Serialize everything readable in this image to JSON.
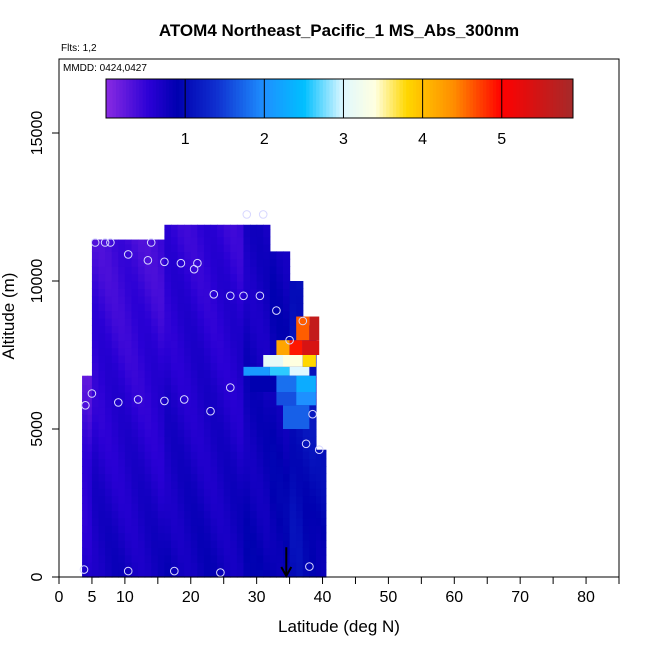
{
  "chart_data": {
    "type": "heatmap",
    "title": "ATOM4 Northeast_Pacific_1 MS_Abs_300nm",
    "flights_label": "Flts: 1,2",
    "mmdd_label": "MMDD: 0424,0427",
    "xlabel": "Latitude (deg N)",
    "ylabel": "Altitude (m)",
    "xlim": [
      0,
      85
    ],
    "ylim": [
      0,
      17500
    ],
    "x_ticks": [
      0,
      5,
      10,
      20,
      30,
      40,
      50,
      60,
      70,
      80
    ],
    "y_ticks": [
      0,
      5000,
      10000,
      15000
    ],
    "grid": false,
    "colorbar": {
      "range": [
        0,
        5.9
      ],
      "ticks": [
        1,
        2,
        3,
        4,
        5
      ],
      "placement": "top-inside"
    },
    "colormap": [
      [
        0.0,
        "#8a2be2"
      ],
      [
        0.55,
        "#2a00d5"
      ],
      [
        0.9,
        "#0000b0"
      ],
      [
        1.4,
        "#1030d0"
      ],
      [
        2.0,
        "#1e90ff"
      ],
      [
        2.5,
        "#00bfff"
      ],
      [
        3.0,
        "#e0f8ff"
      ],
      [
        3.4,
        "#ffffe0"
      ],
      [
        3.8,
        "#ffd700"
      ],
      [
        4.4,
        "#ff8c00"
      ],
      [
        5.0,
        "#ff0000"
      ],
      [
        5.9,
        "#a52a2a"
      ]
    ],
    "field_columns": [
      {
        "x0": 3.5,
        "x1": 6,
        "ytop": 6800,
        "v_bottom": 0.7,
        "v_top": 0.3
      },
      {
        "x0": 5,
        "x1": 16,
        "ytop": 11400,
        "v_bottom": 0.75,
        "v_top": 0.4
      },
      {
        "x0": 16,
        "x1": 28,
        "ytop": 11900,
        "v_bottom": 0.8,
        "v_top": 0.5
      },
      {
        "x0": 28,
        "x1": 32,
        "ytop": 11900,
        "v_bottom": 0.85,
        "v_top": 0.7
      },
      {
        "x0": 32,
        "x1": 35,
        "ytop": 11000,
        "v_bottom": 0.9,
        "v_top": 0.8
      },
      {
        "x0": 35,
        "x1": 37,
        "ytop": 10000,
        "v_bottom": 1.0,
        "v_top": 1.1
      },
      {
        "x0": 37,
        "x1": 39,
        "ytop": 8500,
        "v_bottom": 0.9,
        "v_top": 1.2
      },
      {
        "x0": 39,
        "x1": 40.5,
        "ytop": 4300,
        "v_bottom": 0.9,
        "v_top": 1.0
      }
    ],
    "hot_band": {
      "x_range": [
        28,
        39.5
      ],
      "y_range": [
        6800,
        8800
      ],
      "cells": [
        {
          "x0": 28,
          "x1": 32,
          "y0": 6800,
          "y1": 7100,
          "v": 2.1
        },
        {
          "x0": 32,
          "x1": 35,
          "y0": 6800,
          "y1": 7100,
          "v": 2.6
        },
        {
          "x0": 35,
          "x1": 38,
          "y0": 6800,
          "y1": 7100,
          "v": 3.0
        },
        {
          "x0": 31,
          "x1": 34,
          "y0": 7100,
          "y1": 7500,
          "v": 3.1
        },
        {
          "x0": 34,
          "x1": 37,
          "y0": 7100,
          "y1": 7500,
          "v": 3.4
        },
        {
          "x0": 37,
          "x1": 39,
          "y0": 7100,
          "y1": 7500,
          "v": 3.8
        },
        {
          "x0": 33,
          "x1": 35,
          "y0": 7500,
          "y1": 8000,
          "v": 4.2
        },
        {
          "x0": 35,
          "x1": 37,
          "y0": 7500,
          "y1": 8000,
          "v": 4.9
        },
        {
          "x0": 37,
          "x1": 39.5,
          "y0": 7500,
          "y1": 8000,
          "v": 5.4
        },
        {
          "x0": 36,
          "x1": 38,
          "y0": 8000,
          "y1": 8800,
          "v": 4.6
        },
        {
          "x0": 38,
          "x1": 39.5,
          "y0": 8000,
          "y1": 8800,
          "v": 5.6
        },
        {
          "x0": 29,
          "x1": 33,
          "y0": 6250,
          "y1": 6800,
          "v": 0.9
        },
        {
          "x0": 33,
          "x1": 36,
          "y0": 6250,
          "y1": 6800,
          "v": 1.8
        },
        {
          "x0": 36,
          "x1": 39,
          "y0": 6250,
          "y1": 6800,
          "v": 2.3
        },
        {
          "x0": 33,
          "x1": 36,
          "y0": 5800,
          "y1": 6250,
          "v": 1.6
        },
        {
          "x0": 36,
          "x1": 39,
          "y0": 5800,
          "y1": 6250,
          "v": 2.0
        },
        {
          "x0": 34,
          "x1": 38,
          "y0": 5000,
          "y1": 5800,
          "v": 1.7
        }
      ]
    },
    "sample_points": [
      [
        3.8,
        250
      ],
      [
        10.5,
        200
      ],
      [
        17.5,
        200
      ],
      [
        24.5,
        150
      ],
      [
        38,
        350
      ],
      [
        4,
        5800
      ],
      [
        5,
        6200
      ],
      [
        9,
        5900
      ],
      [
        12,
        6000
      ],
      [
        16,
        5950
      ],
      [
        19,
        6000
      ],
      [
        23,
        5600
      ],
      [
        26,
        6400
      ],
      [
        38.5,
        5500
      ],
      [
        37.5,
        4500
      ],
      [
        39.5,
        4300
      ],
      [
        5.5,
        11300
      ],
      [
        7,
        11300
      ],
      [
        7.8,
        11300
      ],
      [
        14,
        11300
      ],
      [
        10.5,
        10900
      ],
      [
        13.5,
        10700
      ],
      [
        16,
        10650
      ],
      [
        18.5,
        10600
      ],
      [
        21,
        10600
      ],
      [
        20.5,
        10400
      ],
      [
        23.5,
        9550
      ],
      [
        26,
        9500
      ],
      [
        28,
        9500
      ],
      [
        30.5,
        9500
      ],
      [
        33,
        9000
      ],
      [
        37,
        8650
      ],
      [
        35,
        8000
      ],
      [
        28.5,
        12250
      ],
      [
        31,
        12250
      ]
    ],
    "arrow_marker": {
      "x": 34.5,
      "y_from": 600,
      "y_to": 0
    }
  }
}
